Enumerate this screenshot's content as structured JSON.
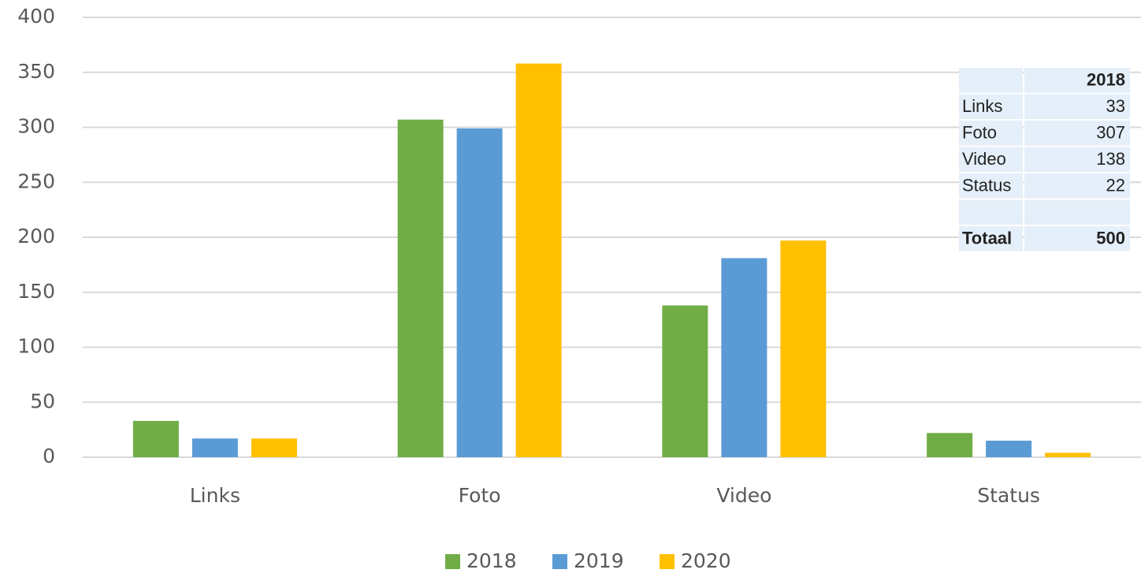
{
  "chart_data": {
    "type": "bar",
    "categories": [
      "Links",
      "Foto",
      "Video",
      "Status"
    ],
    "series": [
      {
        "name": "2018",
        "color": "#70ad47",
        "values": [
          33,
          307,
          138,
          22
        ]
      },
      {
        "name": "2019",
        "color": "#5b9bd5",
        "values": [
          17,
          299,
          181,
          15
        ]
      },
      {
        "name": "2020",
        "color": "#ffc000",
        "values": [
          17,
          358,
          197,
          4
        ]
      }
    ],
    "ylim": [
      0,
      400
    ],
    "yticks": [
      0,
      50,
      100,
      150,
      200,
      250,
      300,
      350,
      400
    ],
    "grid": true,
    "legend": "bottom"
  },
  "table": {
    "column": "2018",
    "rows": [
      {
        "label": "Links",
        "value": 33
      },
      {
        "label": "Foto",
        "value": 307
      },
      {
        "label": "Video",
        "value": 138
      },
      {
        "label": "Status",
        "value": 22
      }
    ],
    "total": {
      "label": "Totaal",
      "value": 500
    }
  }
}
